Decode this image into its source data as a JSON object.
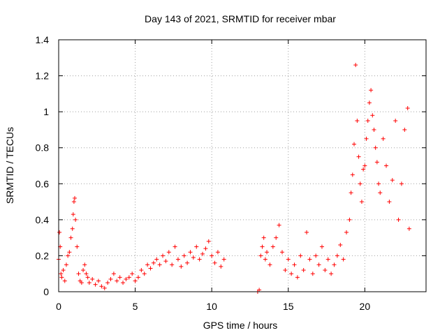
{
  "chart_data": {
    "type": "scatter",
    "title": "Day 143 of 2021, SRMTID for receiver mbar",
    "xlabel": "GPS time / hours",
    "ylabel": "SRMTID / TECUs",
    "xlim": [
      0,
      24
    ],
    "ylim": [
      0,
      1.4
    ],
    "xticks": [
      0,
      5,
      10,
      15,
      20
    ],
    "yticks": [
      0,
      0.2,
      0.4,
      0.6,
      0.8,
      1,
      1.2,
      1.4
    ],
    "xtick_labels": [
      "0",
      "5",
      "10",
      "15",
      "20"
    ],
    "ytick_labels": [
      "0",
      "0.2",
      "0.4",
      "0.6",
      "0.8",
      "1",
      "1.2",
      "1.4"
    ],
    "grid": true,
    "marker": "+",
    "marker_color": "#ff0000",
    "series": [
      {
        "name": "SRMTID",
        "points": [
          [
            0.0,
            0.18
          ],
          [
            0.05,
            0.33
          ],
          [
            0.1,
            0.25
          ],
          [
            0.15,
            0.1
          ],
          [
            0.2,
            0.08
          ],
          [
            0.3,
            0.12
          ],
          [
            0.4,
            0.06
          ],
          [
            0.5,
            0.15
          ],
          [
            0.6,
            0.2
          ],
          [
            0.7,
            0.22
          ],
          [
            0.8,
            0.3
          ],
          [
            0.9,
            0.35
          ],
          [
            0.95,
            0.43
          ],
          [
            1.0,
            0.5
          ],
          [
            1.05,
            0.52
          ],
          [
            1.1,
            0.4
          ],
          [
            1.2,
            0.25
          ],
          [
            1.3,
            0.1
          ],
          [
            1.4,
            0.06
          ],
          [
            1.5,
            0.05
          ],
          [
            1.6,
            0.12
          ],
          [
            1.7,
            0.15
          ],
          [
            1.8,
            0.1
          ],
          [
            1.9,
            0.08
          ],
          [
            2.0,
            0.05
          ],
          [
            2.2,
            0.07
          ],
          [
            2.4,
            0.04
          ],
          [
            2.6,
            0.06
          ],
          [
            2.8,
            0.03
          ],
          [
            3.0,
            0.02
          ],
          [
            3.2,
            0.05
          ],
          [
            3.4,
            0.07
          ],
          [
            3.6,
            0.1
          ],
          [
            3.8,
            0.06
          ],
          [
            4.0,
            0.08
          ],
          [
            4.2,
            0.05
          ],
          [
            4.4,
            0.07
          ],
          [
            4.6,
            0.08
          ],
          [
            4.8,
            0.1
          ],
          [
            5.0,
            0.06
          ],
          [
            5.2,
            0.08
          ],
          [
            5.4,
            0.12
          ],
          [
            5.6,
            0.1
          ],
          [
            5.8,
            0.15
          ],
          [
            6.0,
            0.13
          ],
          [
            6.2,
            0.16
          ],
          [
            6.4,
            0.18
          ],
          [
            6.6,
            0.15
          ],
          [
            6.8,
            0.2
          ],
          [
            7.0,
            0.17
          ],
          [
            7.2,
            0.22
          ],
          [
            7.4,
            0.15
          ],
          [
            7.6,
            0.25
          ],
          [
            7.8,
            0.18
          ],
          [
            8.0,
            0.14
          ],
          [
            8.2,
            0.2
          ],
          [
            8.4,
            0.16
          ],
          [
            8.6,
            0.22
          ],
          [
            8.8,
            0.19
          ],
          [
            9.0,
            0.25
          ],
          [
            9.2,
            0.18
          ],
          [
            9.4,
            0.21
          ],
          [
            9.6,
            0.24
          ],
          [
            9.8,
            0.28
          ],
          [
            10.0,
            0.2
          ],
          [
            10.2,
            0.16
          ],
          [
            10.4,
            0.22
          ],
          [
            10.6,
            0.14
          ],
          [
            10.8,
            0.18
          ],
          [
            13.0,
            0.0
          ],
          [
            13.1,
            0.01
          ],
          [
            13.2,
            0.2
          ],
          [
            13.3,
            0.25
          ],
          [
            13.4,
            0.3
          ],
          [
            13.5,
            0.18
          ],
          [
            13.6,
            0.22
          ],
          [
            13.8,
            0.15
          ],
          [
            14.0,
            0.25
          ],
          [
            14.2,
            0.3
          ],
          [
            14.4,
            0.37
          ],
          [
            14.6,
            0.22
          ],
          [
            14.8,
            0.12
          ],
          [
            15.0,
            0.18
          ],
          [
            15.2,
            0.1
          ],
          [
            15.4,
            0.15
          ],
          [
            15.6,
            0.08
          ],
          [
            15.8,
            0.2
          ],
          [
            16.0,
            0.12
          ],
          [
            16.2,
            0.33
          ],
          [
            16.4,
            0.18
          ],
          [
            16.6,
            0.1
          ],
          [
            16.8,
            0.2
          ],
          [
            17.0,
            0.15
          ],
          [
            17.2,
            0.25
          ],
          [
            17.4,
            0.12
          ],
          [
            17.6,
            0.18
          ],
          [
            17.8,
            0.1
          ],
          [
            18.0,
            0.15
          ],
          [
            18.2,
            0.2
          ],
          [
            18.4,
            0.26
          ],
          [
            18.6,
            0.18
          ],
          [
            18.8,
            0.33
          ],
          [
            19.0,
            0.4
          ],
          [
            19.1,
            0.55
          ],
          [
            19.2,
            0.65
          ],
          [
            19.3,
            0.82
          ],
          [
            19.4,
            1.26
          ],
          [
            19.5,
            0.95
          ],
          [
            19.6,
            0.75
          ],
          [
            19.7,
            0.6
          ],
          [
            19.8,
            0.5
          ],
          [
            19.9,
            0.68
          ],
          [
            20.0,
            0.7
          ],
          [
            20.1,
            0.85
          ],
          [
            20.2,
            0.95
          ],
          [
            20.3,
            1.05
          ],
          [
            20.4,
            1.12
          ],
          [
            20.5,
            0.98
          ],
          [
            20.6,
            0.9
          ],
          [
            20.7,
            0.8
          ],
          [
            20.8,
            0.72
          ],
          [
            20.9,
            0.6
          ],
          [
            21.0,
            0.55
          ],
          [
            21.2,
            0.85
          ],
          [
            21.4,
            0.7
          ],
          [
            21.6,
            0.5
          ],
          [
            21.8,
            0.62
          ],
          [
            22.0,
            0.95
          ],
          [
            22.2,
            0.4
          ],
          [
            22.4,
            0.6
          ],
          [
            22.6,
            0.9
          ],
          [
            22.8,
            1.02
          ],
          [
            22.9,
            0.35
          ]
        ]
      }
    ]
  }
}
